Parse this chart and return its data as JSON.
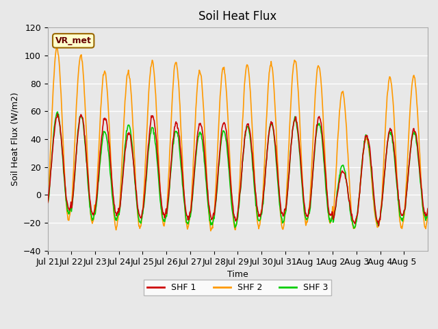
{
  "title": "Soil Heat Flux",
  "ylabel": "Soil Heat Flux (W/m2)",
  "xlabel": "Time",
  "ylim": [
    -40,
    120
  ],
  "background_color": "#e8e8e8",
  "plot_bg_color": "#e8e8e8",
  "grid_color": "white",
  "legend_labels": [
    "SHF 1",
    "SHF 2",
    "SHF 3"
  ],
  "legend_colors": [
    "#cc0000",
    "#ff9900",
    "#00cc00"
  ],
  "annotation_text": "VR_met",
  "x_tick_labels": [
    "Jul 21",
    "Jul 22",
    "Jul 23",
    "Jul 24",
    "Jul 25",
    "Jul 26",
    "Jul 27",
    "Jul 28",
    "Jul 29",
    "Jul 30",
    "Jul 31",
    "Aug 1",
    "Aug 2",
    "Aug 3",
    "Aug 4",
    "Aug 5"
  ],
  "n_days": 16,
  "shf1_peaks": [
    57,
    57,
    55,
    44,
    56,
    52,
    51,
    52,
    51,
    52,
    55,
    56,
    17,
    43,
    47,
    47
  ],
  "shf2_peaks": [
    105,
    100,
    88,
    88,
    96,
    95,
    89,
    91,
    93,
    94,
    97,
    93,
    74,
    40,
    84,
    85
  ],
  "shf3_peaks": [
    59,
    57,
    45,
    50,
    48,
    46,
    45,
    46,
    49,
    51,
    54,
    52,
    21,
    42,
    45,
    45
  ],
  "shf1_troughs": [
    -10,
    -14,
    -14,
    -16,
    -15,
    -17,
    -17,
    -18,
    -15,
    -15,
    -15,
    -15,
    -20,
    -20,
    -15,
    -15
  ],
  "shf2_troughs": [
    -18,
    -20,
    -24,
    -24,
    -22,
    -24,
    -25,
    -24,
    -23,
    -24,
    -21,
    -20,
    -25,
    -23,
    -24,
    -23
  ],
  "shf3_troughs": [
    -13,
    -18,
    -18,
    -20,
    -19,
    -20,
    -21,
    -22,
    -19,
    -19,
    -18,
    -19,
    -23,
    -21,
    -18,
    -17
  ],
  "line_width": 1.2,
  "yticks": [
    -40,
    -20,
    0,
    20,
    40,
    60,
    80,
    100,
    120
  ]
}
